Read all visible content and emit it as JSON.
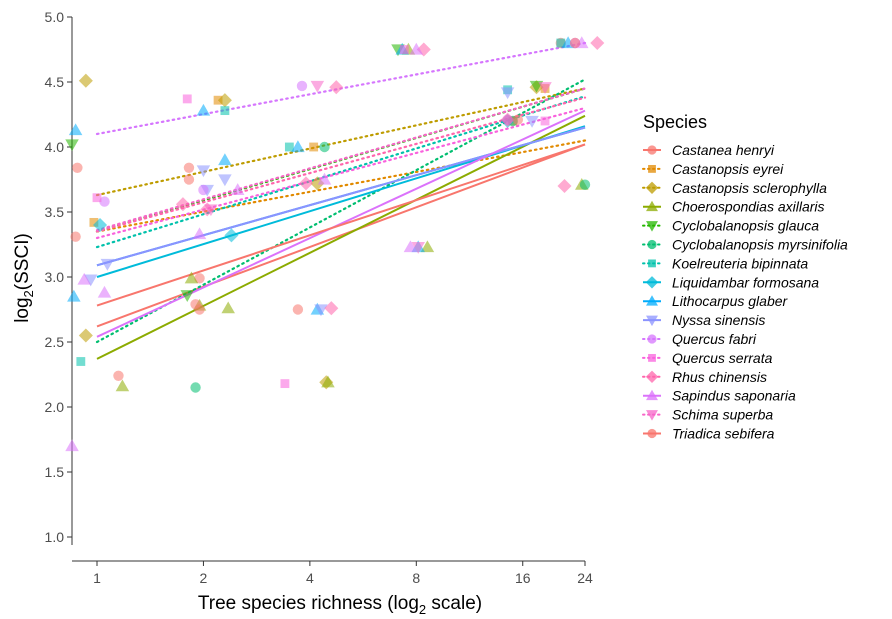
{
  "chart_data": {
    "type": "scatter",
    "xlabel_main": "Tree species richness (log",
    "xlabel_sub": "2",
    "xlabel_end": " scale)",
    "ylabel_main": "log",
    "ylabel_sub": "2",
    "ylabel_end": "(SSCI)",
    "x_scale": "log2",
    "xlim": [
      0.85,
      24
    ],
    "ylim": [
      0.95,
      5.0
    ],
    "x_ticks": [
      1,
      2,
      4,
      8,
      16,
      24
    ],
    "x_tick_labels": [
      "1",
      "2",
      "4",
      "8",
      "16",
      "24"
    ],
    "y_ticks": [
      1.0,
      1.5,
      2.0,
      2.5,
      3.0,
      3.5,
      4.0,
      4.5,
      5.0
    ],
    "y_tick_labels": [
      "1.0",
      "1.5",
      "2.0",
      "2.5",
      "3.0",
      "3.5",
      "4.0",
      "4.5",
      "5.0"
    ],
    "grid": false,
    "legend_title": "Species",
    "legend_position": "right",
    "series": [
      {
        "name": "Castanea henryi",
        "color": "#F8766D",
        "shape": "circle",
        "line": "solid",
        "fit": [
          [
            1,
            2.62
          ],
          [
            24,
            4.02
          ]
        ],
        "points": [
          [
            0.88,
            3.84
          ],
          [
            0.87,
            3.31
          ],
          [
            1.15,
            2.24
          ],
          [
            1.95,
            2.99
          ],
          [
            1.82,
            3.84
          ],
          [
            3.7,
            2.75
          ],
          [
            20.5,
            4.8
          ]
        ]
      },
      {
        "name": "Castanopsis eyrei",
        "color": "#E18A00",
        "shape": "square",
        "line": "dotted",
        "fit": [
          [
            1,
            3.35
          ],
          [
            24,
            4.05
          ]
        ],
        "points": [
          [
            0.98,
            3.42
          ],
          [
            2.2,
            4.36
          ],
          [
            4.1,
            4.0
          ],
          [
            15,
            4.2
          ],
          [
            18.5,
            4.45
          ]
        ]
      },
      {
        "name": "Castanopsis sclerophylla",
        "color": "#BE9C00",
        "shape": "diamond",
        "line": "dotted",
        "fit": [
          [
            1,
            3.63
          ],
          [
            24,
            4.45
          ]
        ],
        "points": [
          [
            0.93,
            4.51
          ],
          [
            0.93,
            2.55
          ],
          [
            2.3,
            4.36
          ],
          [
            4.2,
            3.72
          ],
          [
            4.45,
            2.19
          ],
          [
            17.5,
            4.46
          ]
        ]
      },
      {
        "name": "Choerospondias axillaris",
        "color": "#8CAB00",
        "shape": "triangle",
        "line": "solid",
        "fit": [
          [
            1,
            2.37
          ],
          [
            24,
            4.24
          ]
        ],
        "points": [
          [
            1.18,
            2.16
          ],
          [
            1.85,
            2.99
          ],
          [
            1.95,
            2.78
          ],
          [
            2.35,
            2.76
          ],
          [
            4.5,
            2.19
          ],
          [
            7.6,
            4.75
          ],
          [
            8.6,
            3.23
          ],
          [
            23.5,
            3.71
          ]
        ]
      },
      {
        "name": "Cyclobalanopsis glauca",
        "color": "#24B700",
        "shape": "triangle-down",
        "line": "dotted",
        "fit": [
          [
            1,
            3.35
          ],
          [
            24,
            4.45
          ]
        ],
        "points": [
          [
            0.85,
            4.02
          ],
          [
            1.8,
            2.86
          ],
          [
            7.1,
            4.75
          ],
          [
            17.5,
            4.47
          ]
        ]
      },
      {
        "name": "Cyclobalanopsis myrsinifolia",
        "color": "#00BE70",
        "shape": "circle",
        "line": "dotted",
        "fit": [
          [
            1,
            2.5
          ],
          [
            24,
            4.52
          ]
        ],
        "points": [
          [
            1.9,
            2.15
          ],
          [
            4.4,
            4.0
          ],
          [
            15,
            4.2
          ],
          [
            24,
            3.71
          ]
        ]
      },
      {
        "name": "Koelreuteria bipinnata",
        "color": "#00C1AB",
        "shape": "square",
        "line": "dotted",
        "fit": [
          [
            1,
            3.23
          ],
          [
            24,
            4.39
          ]
        ],
        "points": [
          [
            0.9,
            2.35
          ],
          [
            2.3,
            4.28
          ],
          [
            3.5,
            4.0
          ],
          [
            14.5,
            4.44
          ],
          [
            20.5,
            4.8
          ]
        ]
      },
      {
        "name": "Liquidambar formosana",
        "color": "#00BBDA",
        "shape": "diamond",
        "line": "solid",
        "fit": [
          [
            1,
            3.0
          ],
          [
            24,
            4.16
          ]
        ],
        "points": [
          [
            1.02,
            3.4
          ],
          [
            2.4,
            3.32
          ],
          [
            14.5,
            4.2
          ]
        ]
      },
      {
        "name": "Lithocarpus glaber",
        "color": "#00ACFC",
        "shape": "triangle",
        "line": "solid",
        "fit": [
          [
            1,
            3.09
          ],
          [
            24,
            4.15
          ]
        ],
        "points": [
          [
            0.87,
            4.13
          ],
          [
            0.86,
            2.85
          ],
          [
            2.3,
            3.9
          ],
          [
            2.0,
            4.28
          ],
          [
            3.7,
            4.0
          ],
          [
            4.2,
            2.75
          ],
          [
            7.3,
            4.75
          ],
          [
            8.1,
            3.23
          ],
          [
            21.5,
            4.8
          ]
        ]
      },
      {
        "name": "Nyssa sinensis",
        "color": "#8B93FF",
        "shape": "triangle-down",
        "line": "solid",
        "fit": [
          [
            1,
            3.09
          ],
          [
            24,
            4.15
          ]
        ],
        "points": [
          [
            0.96,
            2.98
          ],
          [
            1.07,
            3.1
          ],
          [
            2.05,
            3.67
          ],
          [
            2.3,
            3.75
          ],
          [
            2.0,
            3.82
          ],
          [
            4.3,
            2.75
          ],
          [
            14.5,
            4.42
          ],
          [
            17,
            4.2
          ]
        ]
      },
      {
        "name": "Quercus fabri",
        "color": "#D575FE",
        "shape": "circle",
        "line": "dotted",
        "fit": [
          [
            1,
            4.1
          ],
          [
            24,
            4.8
          ]
        ],
        "points": [
          [
            1.05,
            3.58
          ],
          [
            2.0,
            3.67
          ],
          [
            3.8,
            4.47
          ],
          [
            14.5,
            4.21
          ],
          [
            22.5,
            4.8
          ]
        ]
      },
      {
        "name": "Quercus serrata",
        "color": "#F962DD",
        "shape": "square",
        "line": "dotted",
        "fit": [
          [
            1,
            3.3
          ],
          [
            24,
            4.3
          ]
        ],
        "points": [
          [
            1.0,
            3.61
          ],
          [
            1.8,
            4.37
          ],
          [
            3.4,
            2.18
          ],
          [
            7.4,
            4.75
          ],
          [
            18.5,
            4.2
          ]
        ]
      },
      {
        "name": "Rhus chinensis",
        "color": "#FF65AC",
        "shape": "diamond",
        "line": "dotted",
        "fit": [
          [
            1,
            3.35
          ],
          [
            24,
            4.38
          ]
        ],
        "points": [
          [
            1.75,
            3.56
          ],
          [
            2.05,
            3.52
          ],
          [
            3.9,
            3.72
          ],
          [
            4.6,
            2.76
          ],
          [
            4.75,
            4.46
          ],
          [
            8.4,
            4.75
          ],
          [
            14.5,
            4.21
          ],
          [
            21,
            3.7
          ],
          [
            26,
            4.8
          ]
        ]
      },
      {
        "name": "Sapindus saponaria",
        "color": "#DB72FB",
        "shape": "triangle",
        "line": "solid",
        "fit": [
          [
            1,
            2.54
          ],
          [
            24,
            4.28
          ]
        ],
        "points": [
          [
            0.85,
            1.7
          ],
          [
            0.92,
            2.98
          ],
          [
            1.05,
            2.88
          ],
          [
            1.95,
            3.33
          ],
          [
            2.5,
            3.67
          ],
          [
            4.4,
            3.75
          ],
          [
            8.0,
            4.75
          ],
          [
            7.7,
            3.23
          ],
          [
            23.5,
            4.8
          ]
        ]
      },
      {
        "name": "Schima superba",
        "color": "#F766C8",
        "shape": "triangle-down",
        "line": "dotted",
        "fit": [
          [
            1,
            3.36
          ],
          [
            24,
            4.45
          ]
        ],
        "points": [
          [
            2.1,
            3.52
          ],
          [
            4.2,
            4.47
          ],
          [
            8.1,
            3.23
          ],
          [
            18.5,
            4.46
          ]
        ]
      },
      {
        "name": "Triadica sebifera",
        "color": "#F8766D",
        "shape": "circle",
        "line": "solid",
        "fit": [
          [
            1,
            2.78
          ],
          [
            24,
            4.02
          ]
        ],
        "points": [
          [
            1.82,
            3.75
          ],
          [
            1.9,
            2.79
          ],
          [
            1.95,
            2.75
          ],
          [
            15.5,
            4.21
          ],
          [
            22.5,
            4.8
          ]
        ]
      }
    ]
  }
}
